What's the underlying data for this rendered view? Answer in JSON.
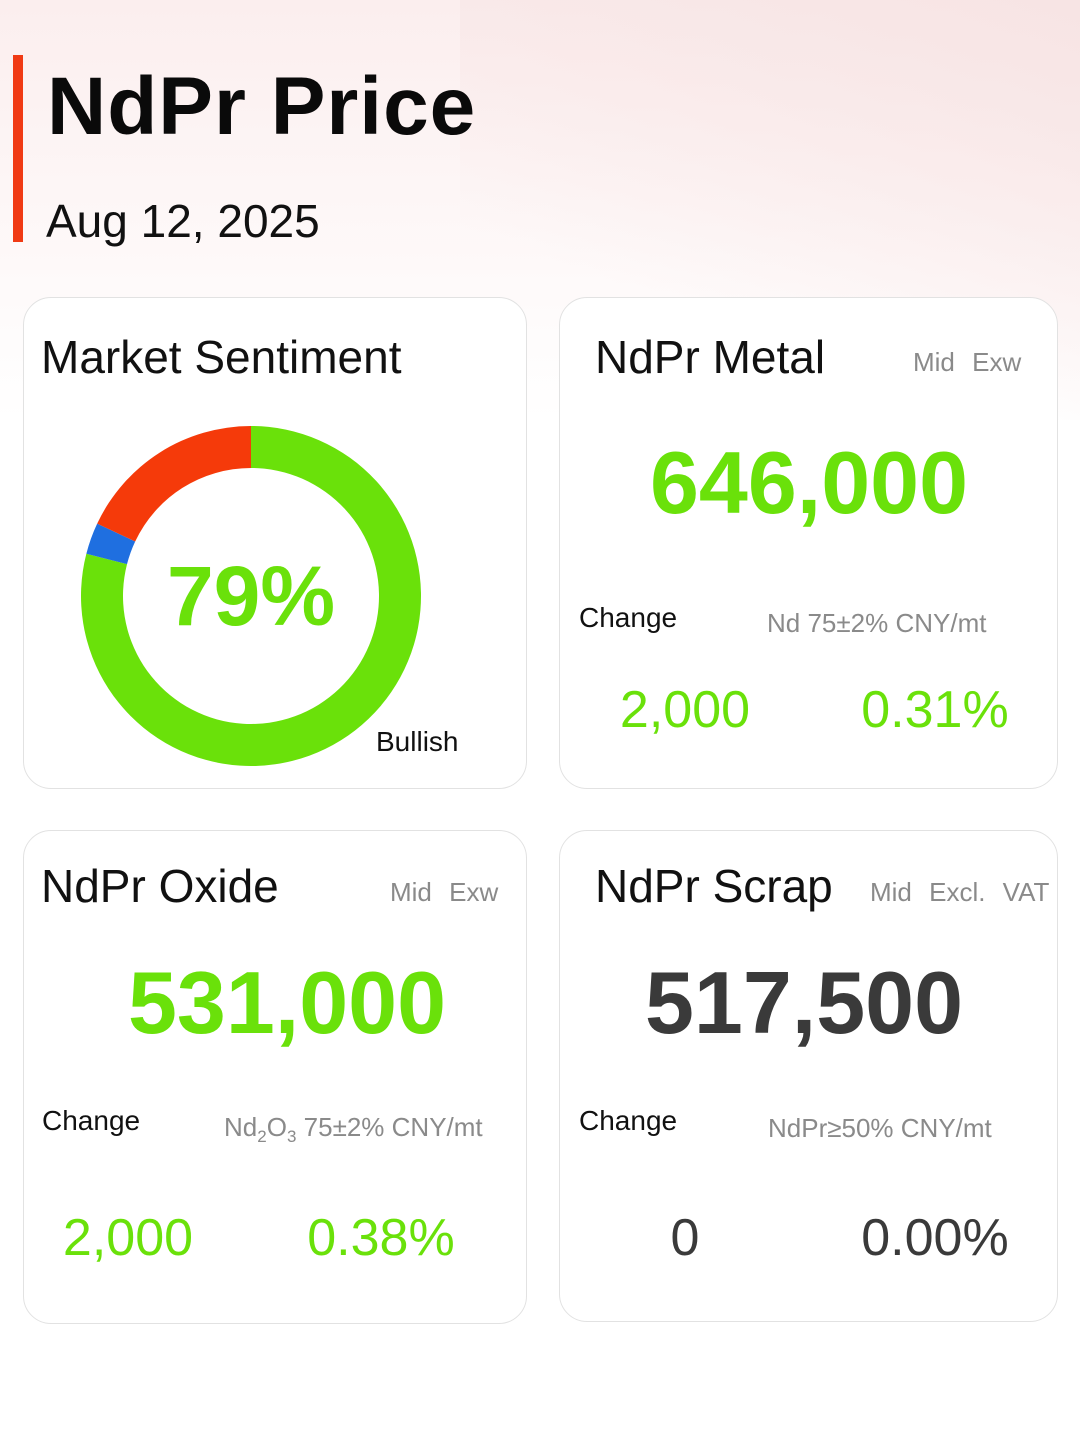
{
  "header": {
    "title": "NdPr Price",
    "date": "Aug 12, 2025"
  },
  "sentiment": {
    "title": "Market Sentiment",
    "bullish_percent": 79,
    "center_label": "79%",
    "bullish_label": "Bullish",
    "segments": [
      {
        "name": "bullish",
        "percent": 79,
        "color": "#6ae10a"
      },
      {
        "name": "neutral",
        "percent": 3,
        "color": "#1f6fe0"
      },
      {
        "name": "bearish",
        "percent": 18,
        "color": "#f53a0a"
      }
    ]
  },
  "metal": {
    "title": "NdPr Metal",
    "meta": "Mid Exw",
    "value": "646,000",
    "change_label": "Change",
    "spec": "Nd 75±2% CNY/mt",
    "change_abs": "2,000",
    "change_pct": "0.31%"
  },
  "oxide": {
    "title": "NdPr Oxide",
    "meta": "Mid Exw",
    "value": "531,000",
    "change_label": "Change",
    "spec_prefix": "Nd",
    "spec_sub1": "2",
    "spec_mid": "O",
    "spec_sub2": "3",
    "spec_suffix": " 75±2% CNY/mt",
    "change_abs": "2,000",
    "change_pct": "0.38%"
  },
  "scrap": {
    "title": "NdPr Scrap",
    "meta": "Mid Excl. VAT",
    "value": "517,500",
    "change_label": "Change",
    "spec": "NdPr≥50% CNY/mt",
    "change_abs": "0",
    "change_pct": "0.00%"
  },
  "colors": {
    "accent": "#f03a14",
    "up_green": "#6ae10a",
    "flat_dark": "#3a3a3a"
  }
}
